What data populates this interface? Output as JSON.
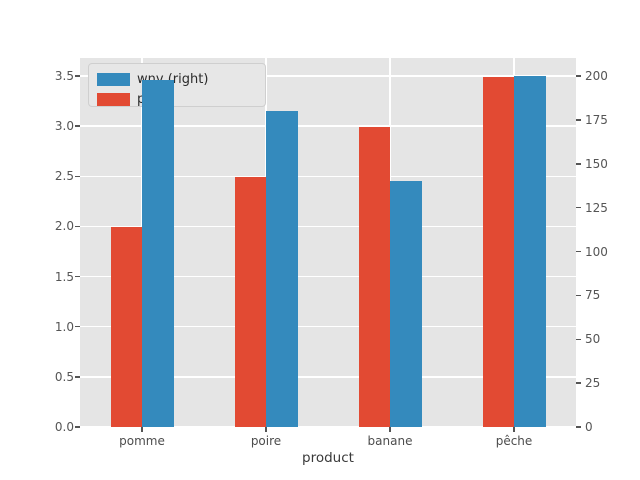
{
  "chart_data": {
    "type": "bar",
    "title": "",
    "xlabel": "product",
    "ylabel_left": "",
    "ylabel_right": "",
    "categories": [
      "pomme",
      "poire",
      "banane",
      "pêche"
    ],
    "series": [
      {
        "name": "pr",
        "legend_label": "pr",
        "axis": "left",
        "color": "#e24a33",
        "values": [
          1.99,
          2.49,
          2.99,
          3.49
        ]
      },
      {
        "name": "wnv",
        "legend_label": "wnv (right)",
        "axis": "right",
        "color": "#348abd",
        "values": [
          198,
          180,
          140,
          200
        ]
      }
    ],
    "left_axis": {
      "tick_labels": [
        "0.0",
        "0.5",
        "1.0",
        "1.5",
        "2.0",
        "2.5",
        "3.0",
        "3.5"
      ],
      "lim": [
        0,
        3.68
      ]
    },
    "right_axis": {
      "tick_labels": [
        "0",
        "25",
        "50",
        "75",
        "100",
        "125",
        "150",
        "175",
        "200"
      ],
      "lim": [
        0,
        210
      ]
    },
    "grid": true,
    "legend_position": "upper left",
    "legend_items": [
      {
        "label": "wnv (right)",
        "color": "#348abd"
      },
      {
        "label": "pr",
        "color": "#e24a33"
      }
    ],
    "colors": {
      "panel_bg": "#e5e5e5",
      "grid": "#ffffff",
      "tick_text": "#555555",
      "red_series": "#e24a33",
      "blue_series": "#348abd"
    }
  }
}
